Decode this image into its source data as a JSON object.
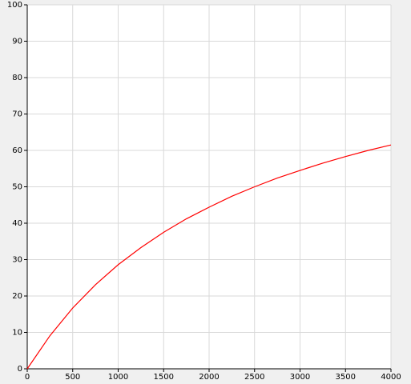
{
  "chart_data": {
    "type": "line",
    "x": [
      0,
      250,
      500,
      750,
      1000,
      1250,
      1500,
      1750,
      2000,
      2250,
      2500,
      2750,
      3000,
      3250,
      3500,
      3750,
      4000
    ],
    "values": [
      0,
      9.1,
      16.7,
      23.1,
      28.6,
      33.3,
      37.5,
      41.2,
      44.4,
      47.4,
      50,
      52.4,
      54.5,
      56.5,
      58.3,
      60,
      61.5
    ],
    "color": "#ff0000",
    "xlim": [
      0,
      4000
    ],
    "xticks": [
      0,
      500,
      1000,
      1500,
      2000,
      2500,
      3000,
      3500,
      4000
    ],
    "ylim": [
      0,
      100
    ],
    "yticks": [
      0,
      10,
      20,
      30,
      40,
      50,
      60,
      70,
      80,
      90,
      100
    ],
    "grid": true
  }
}
